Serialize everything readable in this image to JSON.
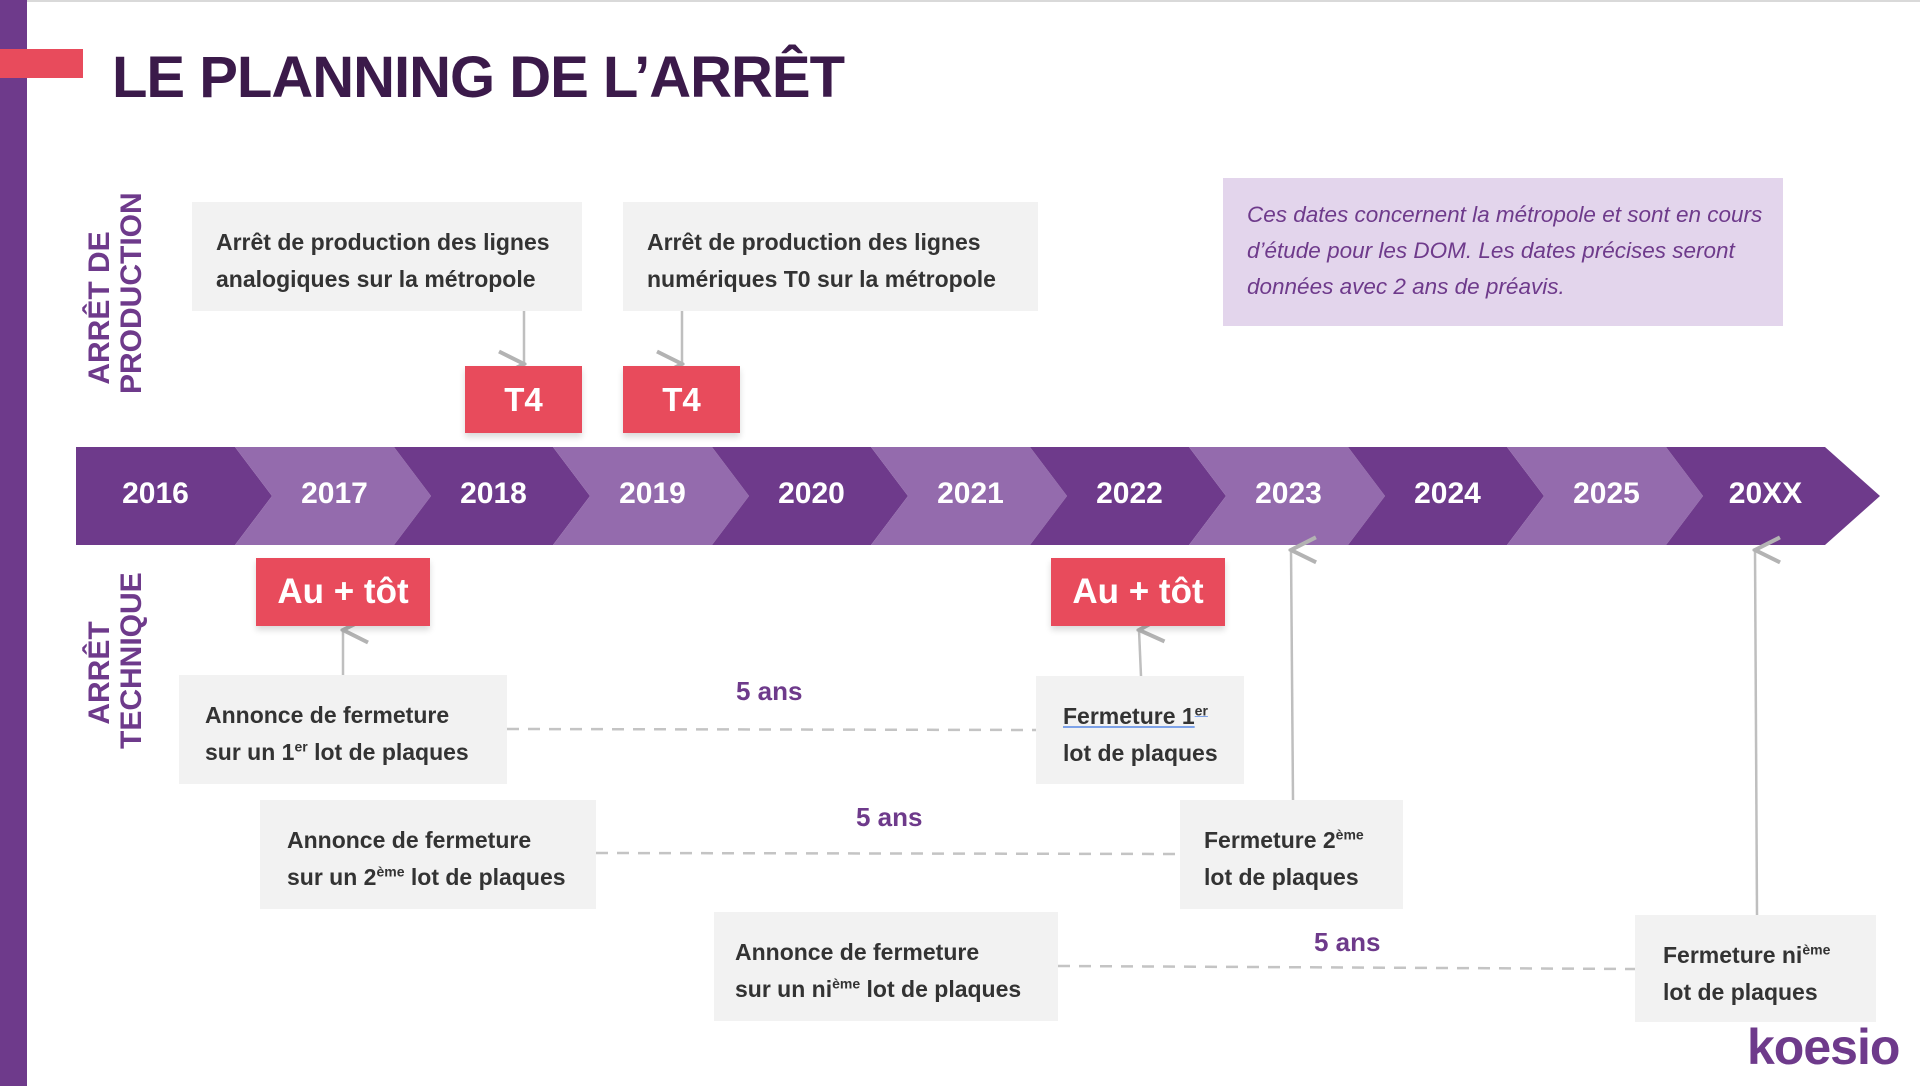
{
  "title": "LE PLANNING DE L’ARRÊT",
  "colors": {
    "accent_red": "#e84b5c",
    "purple_dark": "#6e3a8b",
    "purple_light": "#946bad",
    "title": "#3b1a4a",
    "note_bg": "#e3d5ec",
    "box_bg": "#f2f2f2"
  },
  "section_labels": {
    "production": [
      "ARRÊT DE",
      "PRODUCTION"
    ],
    "technique": [
      "ARRÊT",
      "TECHNIQUE"
    ]
  },
  "timeline": {
    "years": [
      "2016",
      "2017",
      "2018",
      "2019",
      "2020",
      "2021",
      "2022",
      "2023",
      "2024",
      "2025",
      "20XX"
    ]
  },
  "production_boxes": [
    {
      "line1": "Arrêt de production des lignes",
      "line2": "analogiques sur la métropole",
      "tag": "T4"
    },
    {
      "line1": "Arrêt de production des lignes",
      "line2": "numériques T0 sur la métropole",
      "tag": "T4"
    }
  ],
  "note": "Ces dates concernent la métropole et sont en cours d’étude pour les DOM. Les dates précises seront données avec 2 ans de préavis.",
  "early_tags": [
    "Au + tôt",
    "Au + tôt"
  ],
  "announcements": [
    {
      "line1": "Annonce de fermeture",
      "pre": "sur un 1",
      "sup": "er",
      "post": " lot de plaques"
    },
    {
      "line1": "Annonce de fermeture",
      "pre": "sur un 2",
      "sup": "ème",
      "post": " lot de plaques"
    },
    {
      "line1": "Annonce de fermeture",
      "pre": "sur un ni",
      "sup": "ème",
      "post": " lot de plaques"
    }
  ],
  "closures": [
    {
      "pre": "Fermeture 1",
      "sup": "er",
      "line2": "lot de plaques"
    },
    {
      "pre": "Fermeture 2",
      "sup": "ème",
      "line2": "lot de plaques"
    },
    {
      "pre": "Fermeture ni",
      "sup": "ème",
      "line2": "lot de plaques"
    }
  ],
  "durations": [
    "5 ans",
    "5 ans",
    "5 ans"
  ],
  "logo": "koesio"
}
